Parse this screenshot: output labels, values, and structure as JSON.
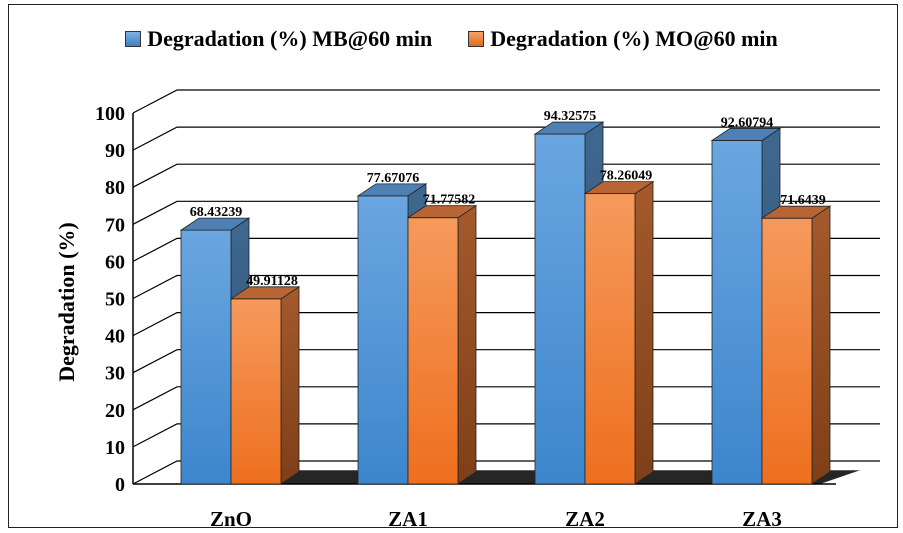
{
  "chart_data": {
    "type": "bar",
    "title": "",
    "xlabel": "",
    "ylabel": "Degradation (%)",
    "ylim": [
      0,
      100
    ],
    "yticks": [
      0,
      10,
      20,
      30,
      40,
      50,
      60,
      70,
      80,
      90,
      100
    ],
    "categories": [
      "ZnO",
      "ZA1",
      "ZA2",
      "ZA3"
    ],
    "series": [
      {
        "name": "Degradation (%) MB@60 min",
        "color": "#5B9BD5",
        "values": [
          68.43239,
          77.67076,
          94.32575,
          92.60794
        ],
        "labels": [
          "68.43239",
          "77.67076",
          "94.32575",
          "92.60794"
        ]
      },
      {
        "name": "Degradation (%) MO@60 min",
        "color": "#ED7D31",
        "values": [
          49.91128,
          71.77582,
          78.26049,
          71.6439
        ],
        "labels": [
          "49.91128",
          "71.77582",
          "78.26049",
          "71.6439"
        ]
      }
    ],
    "legend_position": "top",
    "grid": true,
    "style": "3d-column"
  }
}
